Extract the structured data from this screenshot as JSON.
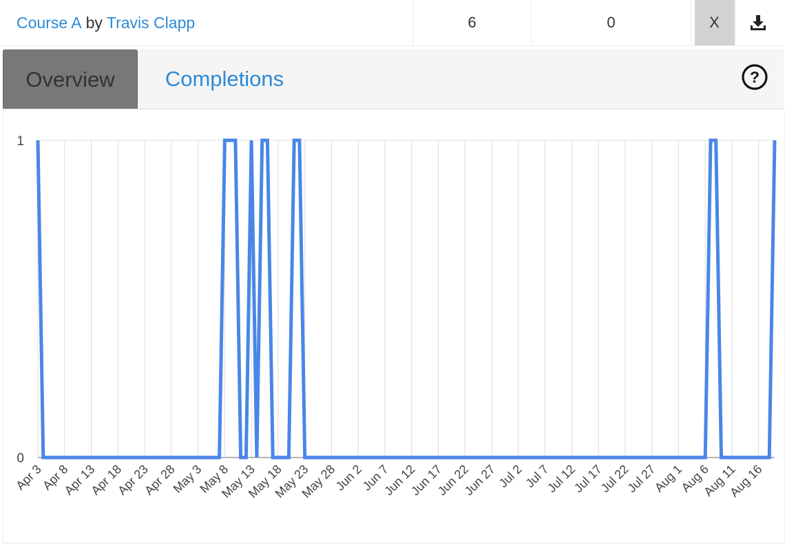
{
  "header": {
    "course_link": "Course A",
    "by_text": "by",
    "author_link": "Travis Clapp",
    "count_1": "6",
    "count_2": "0",
    "close_label": "X",
    "download_icon": "download-icon"
  },
  "tabs": [
    {
      "label": "Overview",
      "active": true
    },
    {
      "label": "Completions",
      "active": false
    }
  ],
  "help_icon": "help-circle-icon",
  "colors": {
    "link": "#2d8ad6",
    "series": "#4a86e8",
    "active_tab_bg": "#787878",
    "close_bg": "#d2d2d2"
  },
  "chart_data": {
    "type": "line",
    "ylim": [
      0,
      1
    ],
    "y_ticks": [
      "0",
      "1"
    ],
    "x_tick_labels": [
      "Apr 3",
      "Apr 8",
      "Apr 13",
      "Apr 18",
      "Apr 23",
      "Apr 28",
      "May 3",
      "May 8",
      "May 13",
      "May 18",
      "May 23",
      "May 28",
      "Jun 2",
      "Jun 7",
      "Jun 12",
      "Jun 17",
      "Jun 22",
      "Jun 27",
      "Jul 2",
      "Jul 7",
      "Jul 12",
      "Jul 17",
      "Jul 22",
      "Jul 27",
      "Aug 1",
      "Aug 6",
      "Aug 11",
      "Aug 16"
    ],
    "x_range": [
      "Apr 3",
      "Aug 19"
    ],
    "grid": true,
    "series": [
      {
        "values": [
          {
            "x": "Apr 3",
            "y": 1
          },
          {
            "x": "Apr 4",
            "y": 0
          },
          {
            "x": "May 7",
            "y": 0
          },
          {
            "x": "May 8",
            "y": 1
          },
          {
            "x": "May 10",
            "y": 1
          },
          {
            "x": "May 11",
            "y": 0
          },
          {
            "x": "May 12",
            "y": 0
          },
          {
            "x": "May 13",
            "y": 1
          },
          {
            "x": "May 14",
            "y": 0
          },
          {
            "x": "May 15",
            "y": 1
          },
          {
            "x": "May 16",
            "y": 1
          },
          {
            "x": "May 17",
            "y": 0
          },
          {
            "x": "May 20",
            "y": 0
          },
          {
            "x": "May 21",
            "y": 1
          },
          {
            "x": "May 22",
            "y": 1
          },
          {
            "x": "May 23",
            "y": 0
          },
          {
            "x": "Aug 6",
            "y": 0
          },
          {
            "x": "Aug 7",
            "y": 1
          },
          {
            "x": "Aug 8",
            "y": 1
          },
          {
            "x": "Aug 9",
            "y": 0
          },
          {
            "x": "Aug 18",
            "y": 0
          },
          {
            "x": "Aug 19",
            "y": 1
          }
        ]
      }
    ]
  }
}
